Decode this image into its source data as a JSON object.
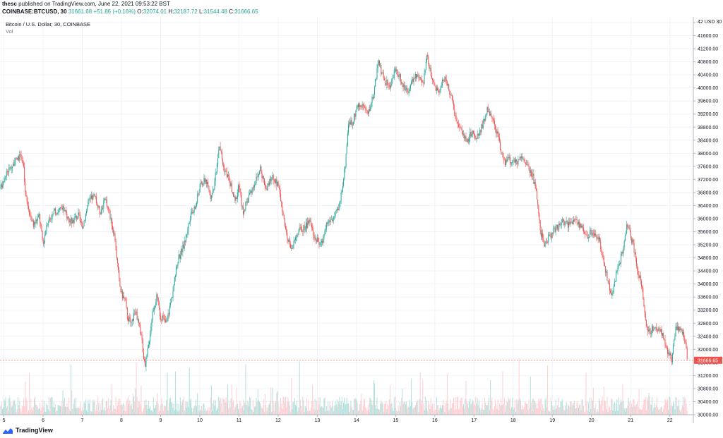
{
  "header": {
    "author": "thesc",
    "published_text": "published on TradingView.com, June 22, 2021 09:53:22 BST",
    "symbol": "COINBASE:BTCUSD, 30",
    "last": "31661.68",
    "change": "+51.86 (+0.16%)",
    "open_label": "O:",
    "open": "32074.01",
    "high_label": "H:",
    "high": "32187.72",
    "low_label": "L:",
    "low": "31544.48",
    "close_label": "C:",
    "close": "31666.65"
  },
  "legend": {
    "title": "Bitcoin / U.S. Dollar, 30, COINBASE",
    "volume": "Vol"
  },
  "price_axis": {
    "unit_label": "42 USD 30",
    "current_price_label": "31666.65"
  },
  "footer": {
    "brand": "TradingView"
  },
  "colors": {
    "up": "#26a69a",
    "down": "#ef5350",
    "up_volume": "#b2dfdb",
    "down_volume": "#ffcdd2",
    "grid": "#f0f3fa",
    "axis_text": "#131722",
    "price_tag": "#ef5350"
  },
  "chart_data": {
    "type": "candlestick",
    "title": "Bitcoin / U.S. Dollar, 30, COINBASE",
    "xlabel": "",
    "ylabel": "",
    "ylim": [
      30000,
      42000
    ],
    "yticks": [
      30000,
      30400,
      30800,
      31200,
      31600,
      32000,
      32400,
      32800,
      33200,
      33600,
      34000,
      34400,
      34800,
      35200,
      35600,
      36000,
      36400,
      36800,
      37200,
      37600,
      38000,
      38400,
      38800,
      39200,
      39600,
      40000,
      40400,
      40800,
      41200,
      41600,
      42000
    ],
    "xticks": [
      "5",
      "6",
      "7",
      "8",
      "9",
      "10",
      "11",
      "12",
      "13",
      "14",
      "15",
      "16",
      "17",
      "18",
      "19",
      "20",
      "21",
      "22"
    ],
    "x_range_days": [
      4.9,
      22.6
    ],
    "grid": true,
    "legend": "top-left",
    "close_path": [
      [
        4.9,
        36900
      ],
      [
        5.05,
        37400
      ],
      [
        5.2,
        37600
      ],
      [
        5.35,
        37850
      ],
      [
        5.45,
        37900
      ],
      [
        5.5,
        37600
      ],
      [
        5.55,
        36700
      ],
      [
        5.65,
        36200
      ],
      [
        5.75,
        35800
      ],
      [
        5.9,
        36100
      ],
      [
        6.0,
        35200
      ],
      [
        6.1,
        35900
      ],
      [
        6.3,
        36200
      ],
      [
        6.5,
        36300
      ],
      [
        6.7,
        35900
      ],
      [
        6.9,
        36100
      ],
      [
        7.0,
        35700
      ],
      [
        7.15,
        36500
      ],
      [
        7.3,
        36700
      ],
      [
        7.45,
        36200
      ],
      [
        7.6,
        36600
      ],
      [
        7.75,
        35900
      ],
      [
        7.85,
        35200
      ],
      [
        7.95,
        34000
      ],
      [
        8.0,
        33700
      ],
      [
        8.1,
        33500
      ],
      [
        8.15,
        33000
      ],
      [
        8.25,
        32800
      ],
      [
        8.35,
        33200
      ],
      [
        8.5,
        32500
      ],
      [
        8.6,
        31400
      ],
      [
        8.7,
        32200
      ],
      [
        8.8,
        33200
      ],
      [
        8.9,
        33600
      ],
      [
        9.0,
        33000
      ],
      [
        9.15,
        32800
      ],
      [
        9.3,
        33700
      ],
      [
        9.45,
        34800
      ],
      [
        9.6,
        35200
      ],
      [
        9.75,
        36000
      ],
      [
        9.9,
        36400
      ],
      [
        10.0,
        37000
      ],
      [
        10.15,
        37200
      ],
      [
        10.3,
        36600
      ],
      [
        10.4,
        37300
      ],
      [
        10.5,
        38300
      ],
      [
        10.6,
        37600
      ],
      [
        10.75,
        37200
      ],
      [
        10.9,
        36500
      ],
      [
        11.0,
        37000
      ],
      [
        11.1,
        36200
      ],
      [
        11.25,
        36700
      ],
      [
        11.4,
        37100
      ],
      [
        11.55,
        37500
      ],
      [
        11.7,
        36900
      ],
      [
        11.85,
        37300
      ],
      [
        12.0,
        37000
      ],
      [
        12.1,
        36400
      ],
      [
        12.2,
        35500
      ],
      [
        12.35,
        35100
      ],
      [
        12.5,
        35600
      ],
      [
        12.65,
        35700
      ],
      [
        12.8,
        35900
      ],
      [
        12.95,
        35400
      ],
      [
        13.1,
        35200
      ],
      [
        13.25,
        35900
      ],
      [
        13.4,
        36000
      ],
      [
        13.55,
        36300
      ],
      [
        13.7,
        37500
      ],
      [
        13.8,
        39000
      ],
      [
        13.9,
        38900
      ],
      [
        14.0,
        39400
      ],
      [
        14.15,
        39500
      ],
      [
        14.3,
        39200
      ],
      [
        14.45,
        39900
      ],
      [
        14.55,
        40800
      ],
      [
        14.7,
        40300
      ],
      [
        14.85,
        40000
      ],
      [
        15.0,
        40600
      ],
      [
        15.15,
        40200
      ],
      [
        15.3,
        39900
      ],
      [
        15.5,
        40400
      ],
      [
        15.7,
        40100
      ],
      [
        15.8,
        41000
      ],
      [
        15.95,
        40100
      ],
      [
        16.1,
        39900
      ],
      [
        16.25,
        40300
      ],
      [
        16.4,
        39800
      ],
      [
        16.55,
        39000
      ],
      [
        16.7,
        38600
      ],
      [
        16.85,
        38400
      ],
      [
        16.95,
        38700
      ],
      [
        17.05,
        38400
      ],
      [
        17.2,
        38800
      ],
      [
        17.35,
        39400
      ],
      [
        17.5,
        38900
      ],
      [
        17.6,
        38600
      ],
      [
        17.75,
        37700
      ],
      [
        17.9,
        37800
      ],
      [
        18.05,
        37700
      ],
      [
        18.2,
        37900
      ],
      [
        18.35,
        37700
      ],
      [
        18.5,
        37300
      ],
      [
        18.6,
        36700
      ],
      [
        18.7,
        35600
      ],
      [
        18.8,
        35200
      ],
      [
        18.95,
        35500
      ],
      [
        19.1,
        35700
      ],
      [
        19.25,
        35900
      ],
      [
        19.4,
        35800
      ],
      [
        19.6,
        36000
      ],
      [
        19.75,
        35700
      ],
      [
        19.9,
        35500
      ],
      [
        20.05,
        35600
      ],
      [
        20.2,
        35300
      ],
      [
        20.35,
        34500
      ],
      [
        20.5,
        33600
      ],
      [
        20.65,
        34400
      ],
      [
        20.8,
        35000
      ],
      [
        20.9,
        35800
      ],
      [
        21.0,
        35500
      ],
      [
        21.1,
        35000
      ],
      [
        21.2,
        34300
      ],
      [
        21.3,
        33900
      ],
      [
        21.35,
        33100
      ],
      [
        21.45,
        32500
      ],
      [
        21.6,
        32700
      ],
      [
        21.75,
        32600
      ],
      [
        21.85,
        32300
      ],
      [
        21.95,
        31900
      ],
      [
        22.05,
        31700
      ],
      [
        22.15,
        32700
      ],
      [
        22.3,
        32600
      ],
      [
        22.42,
        32100
      ],
      [
        22.45,
        31667
      ]
    ]
  }
}
